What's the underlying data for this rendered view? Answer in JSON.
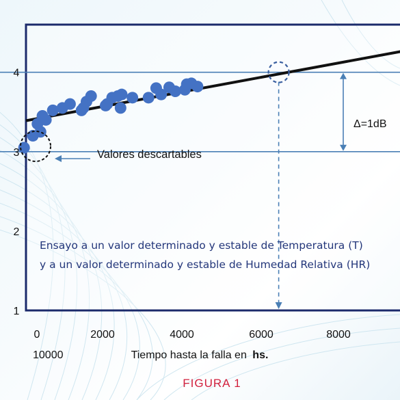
{
  "chart_data": {
    "type": "scatter",
    "title": "",
    "xlabel": "Tiempo hasta la falla en",
    "xlabel_unit": "hs.",
    "ylabel": "",
    "x_ticks": [
      "0",
      "2000",
      "4000",
      "6000",
      "8000",
      "10000"
    ],
    "y_ticks": [
      "1",
      "2",
      "3",
      "4"
    ],
    "xlim": [
      -200,
      9800
    ],
    "ylim": [
      1,
      4.6
    ],
    "grid": false,
    "series": [
      {
        "type": "scatter",
        "x": [
          -250,
          -20,
          180,
          100,
          230,
          320,
          500,
          750,
          950,
          1250,
          1300,
          1380,
          1500,
          1880,
          1920,
          2050,
          2200,
          2270,
          2300,
          2580,
          3000,
          3200,
          3330,
          3540,
          3700,
          3950,
          4000,
          4120,
          4280
        ],
        "y": [
          3.05,
          3.2,
          3.25,
          3.35,
          3.45,
          3.4,
          3.52,
          3.55,
          3.6,
          3.52,
          3.55,
          3.63,
          3.7,
          3.58,
          3.6,
          3.68,
          3.7,
          3.55,
          3.72,
          3.68,
          3.68,
          3.8,
          3.72,
          3.81,
          3.76,
          3.78,
          3.85,
          3.86,
          3.82
        ],
        "color": "#4472c4"
      },
      {
        "type": "line",
        "x": [
          -200,
          9800
        ],
        "y": [
          3.39,
          4.28
        ],
        "color": "#111111"
      }
    ],
    "reference_lines": {
      "y": [
        4.0,
        3.0
      ],
      "x": [
        6400
      ]
    },
    "annotations": {
      "delta": "Δ=1dB",
      "discarded": "Valores descartables",
      "note_line1": "Ensayo a un valor determinado y estable de Temperatura (T)",
      "note_line2": "y a un valor determinado y estable de Humedad Relativa (HR)",
      "figure_caption": "FIGURA 1"
    },
    "colors": {
      "frame": "#1b2a6b",
      "reference": "#4a7fb5",
      "points": "#4472c4",
      "text": "#23367a",
      "caption": "#d21f3c",
      "discard_circle": "#111111",
      "target_circle": "#3a5fa0"
    }
  }
}
